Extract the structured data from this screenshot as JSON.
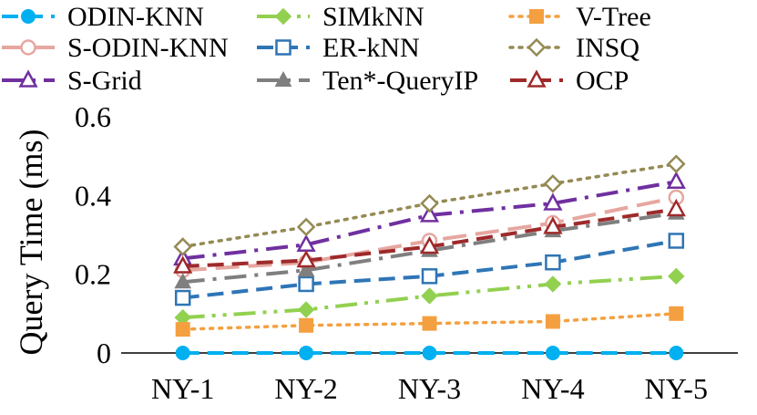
{
  "chart_data": {
    "type": "line",
    "title": "",
    "xlabel": "",
    "ylabel": "Query Time (ms)",
    "categories": [
      "NY-1",
      "NY-2",
      "NY-3",
      "NY-4",
      "NY-5"
    ],
    "ylim": [
      0,
      0.6
    ],
    "yticks": [
      0,
      0.2,
      0.4,
      0.6
    ],
    "ytick_labels": [
      "0",
      "0.2",
      "0.4",
      "0.6"
    ],
    "grid": false,
    "legend_position": "top",
    "series": [
      {
        "name": "ODIN-KNN",
        "values": [
          0.0,
          0.0,
          0.0,
          0.0,
          0.0
        ],
        "color": "#00b0f0",
        "dash": "dash",
        "marker": "circle-filled"
      },
      {
        "name": "S-ODIN-KNN",
        "values": [
          0.21,
          0.23,
          0.285,
          0.33,
          0.395
        ],
        "color": "#e6a7a0",
        "dash": "longdash",
        "marker": "circle-open"
      },
      {
        "name": "S-Grid",
        "values": [
          0.24,
          0.275,
          0.35,
          0.38,
          0.435
        ],
        "color": "#7030a0",
        "dash": "longdashdot",
        "marker": "triangle-open"
      },
      {
        "name": "SIMkNN",
        "values": [
          0.09,
          0.11,
          0.145,
          0.175,
          0.195
        ],
        "color": "#92d050",
        "dash": "longdashdotdot",
        "marker": "diamond-filled"
      },
      {
        "name": "ER-kNN",
        "values": [
          0.14,
          0.175,
          0.195,
          0.23,
          0.285
        ],
        "color": "#2e75b6",
        "dash": "dash",
        "marker": "square-open"
      },
      {
        "name": "Ten*-QueryIP",
        "values": [
          0.18,
          0.21,
          0.26,
          0.31,
          0.355
        ],
        "color": "#7f7f7f",
        "dash": "longdashdot",
        "marker": "triangle-filled"
      },
      {
        "name": "V-Tree",
        "values": [
          0.06,
          0.07,
          0.075,
          0.08,
          0.1
        ],
        "color": "#f4a040",
        "dash": "dot",
        "marker": "square-filled"
      },
      {
        "name": "INSQ",
        "values": [
          0.27,
          0.32,
          0.38,
          0.43,
          0.48
        ],
        "color": "#948a54",
        "dash": "dot",
        "marker": "diamond-open"
      },
      {
        "name": "OCP",
        "values": [
          0.22,
          0.235,
          0.27,
          0.32,
          0.365
        ],
        "color": "#9e2a2b",
        "dash": "dash",
        "marker": "triangle-open"
      }
    ]
  }
}
